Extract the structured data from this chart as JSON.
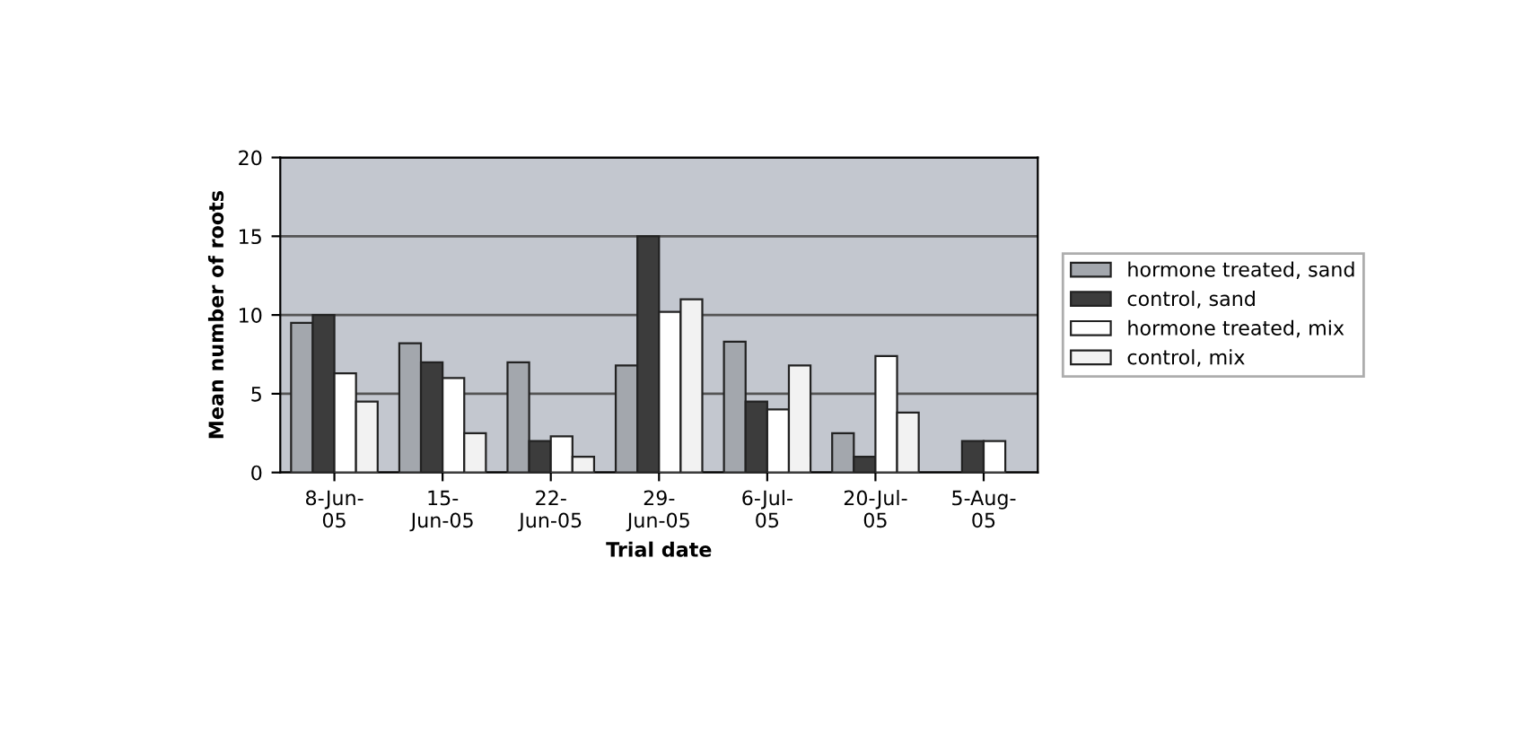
{
  "chart_data": {
    "type": "bar",
    "xlabel": "Trial date",
    "ylabel": "Mean number of roots",
    "categories": [
      "8-Jun-\n05",
      "15-\nJun-05",
      "22-\nJun-05",
      "29-\nJun-05",
      "6-Jul-\n05",
      "20-Jul-\n05",
      "5-Aug-\n05"
    ],
    "series": [
      {
        "name": "hormone treated, sand",
        "color": "#a3a7ad",
        "values": [
          9.5,
          8.2,
          7,
          6.8,
          8.3,
          2.5,
          null
        ]
      },
      {
        "name": "control, sand",
        "color": "#3c3c3c",
        "values": [
          10,
          7,
          2,
          15,
          4.5,
          1,
          2
        ]
      },
      {
        "name": "hormone treated, mix",
        "color": "#ffffff",
        "values": [
          6.3,
          6,
          2.3,
          10.2,
          4,
          7.4,
          2
        ]
      },
      {
        "name": "control, mix",
        "color": "#f2f2f2",
        "values": [
          4.5,
          2.5,
          1,
          11,
          6.8,
          3.8,
          null
        ]
      }
    ],
    "ylim": [
      0,
      20
    ],
    "yticks": [
      0,
      5,
      10,
      15,
      20
    ],
    "grid": "y",
    "legend": "right"
  }
}
